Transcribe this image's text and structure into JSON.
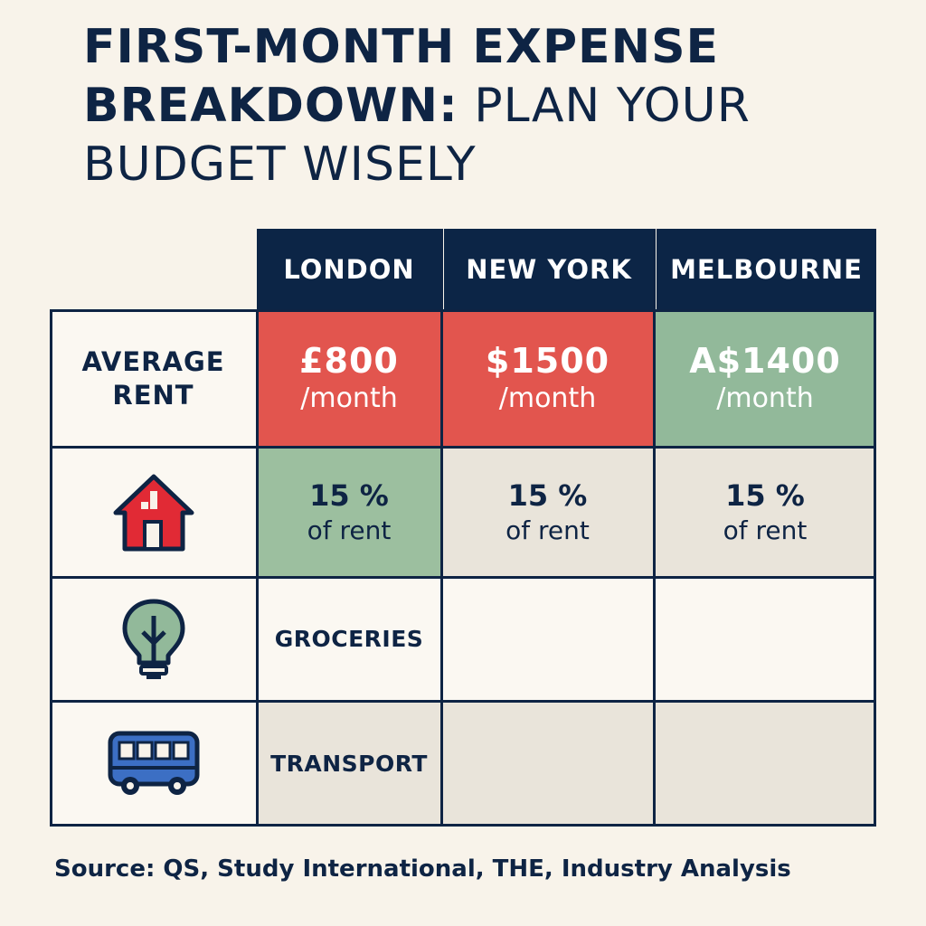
{
  "title": {
    "line1": "FIRST-MONTH EXPENSE",
    "line2_bold": "BREAKDOWN:",
    "line2_rest": " PLAN YOUR",
    "line3": "BUDGET WISELY"
  },
  "table": {
    "columns": [
      "LONDON",
      "NEW YORK",
      "MELBOURNE"
    ],
    "rent_row": {
      "label_line1": "AVERAGE",
      "label_line2": "RENT",
      "cells": [
        {
          "amount": "£800",
          "unit": "/month",
          "color": "#e2554e"
        },
        {
          "amount": "$1500",
          "unit": "/month",
          "color": "#e2554e"
        },
        {
          "amount": "A$1400",
          "unit": "/month",
          "color": "#92b99a"
        }
      ]
    },
    "deposit_row": {
      "icon": "house-icon",
      "cells": [
        {
          "value": "15 %",
          "note": "of rent"
        },
        {
          "value": "15 %",
          "note": "of rent"
        },
        {
          "value": "15 %",
          "note": "of rent"
        }
      ]
    },
    "groceries_row": {
      "icon": "lightbulb-icon",
      "label": "GROCERIES"
    },
    "transport_row": {
      "icon": "bus-icon",
      "label": "TRANSPORT"
    }
  },
  "source": "Source: QS, Study International, THE, Industry Analysis",
  "colors": {
    "navy": "#0c2546",
    "red": "#e2554e",
    "green": "#92b99a",
    "background": "#f8f3ea"
  }
}
